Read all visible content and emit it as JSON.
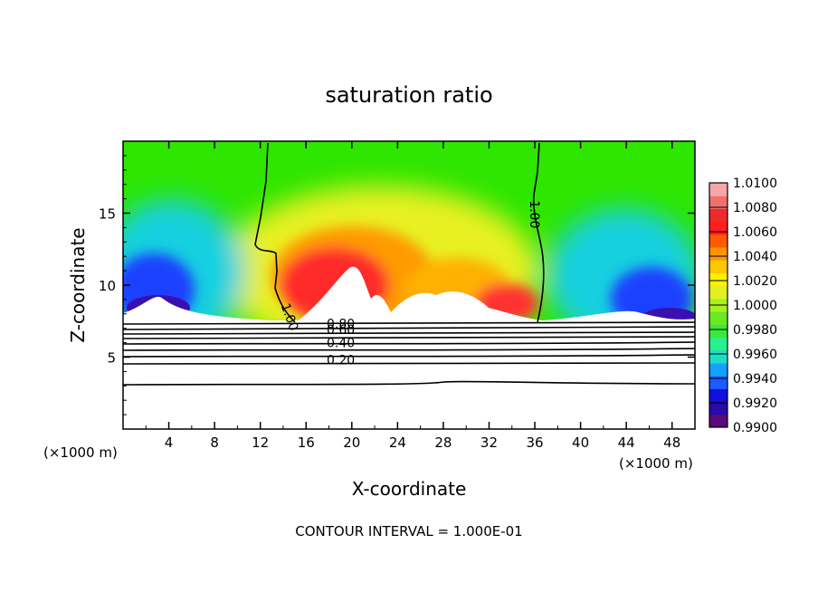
{
  "chart_data": {
    "type": "heatmap",
    "title": "saturation ratio",
    "xlabel": "X-coordinate",
    "ylabel": "Z-coordinate",
    "x_unit_left": "(×1000 m)",
    "x_unit_right": "(×1000 m)",
    "footer": "CONTOUR INTERVAL = 1.000E-01",
    "xlim": [
      0,
      50
    ],
    "ylim": [
      0,
      20
    ],
    "x_ticks": [
      4,
      8,
      12,
      16,
      20,
      24,
      28,
      32,
      36,
      40,
      44,
      48
    ],
    "x_tick_labels": [
      "4",
      "8",
      "12",
      "16",
      "20",
      "24",
      "28",
      "32",
      "36",
      "40",
      "44",
      "48"
    ],
    "y_ticks": [
      5,
      10,
      15
    ],
    "y_tick_labels": [
      "5",
      "10",
      "15"
    ],
    "colorbar": {
      "min": 0.99,
      "max": 1.01,
      "labels": [
        "1.0100",
        "1.0080",
        "1.0060",
        "1.0040",
        "1.0020",
        "1.0000",
        "0.9980",
        "0.9960",
        "0.9940",
        "0.9920",
        "0.9900"
      ],
      "colors": [
        "#5a0a7a",
        "#2a0aa8",
        "#1010e0",
        "#1a5cff",
        "#14a0ff",
        "#18e0c8",
        "#28f08c",
        "#3ce83c",
        "#68ea22",
        "#a8f020",
        "#e0f020",
        "#fff000",
        "#ffc800",
        "#ff9600",
        "#ff5a00",
        "#ff1e1e",
        "#f02a2a",
        "#f07070",
        "#f4a8a8"
      ]
    },
    "contour_labels": [
      {
        "text": "1.00",
        "x": 13.8,
        "z": 8.6,
        "rotate": 70
      },
      {
        "text": "1.00",
        "x": 35.6,
        "z": 15.9,
        "rotate": 90
      },
      {
        "text": "0.80",
        "x": 17.8,
        "z": 7.0,
        "rotate": 0
      },
      {
        "text": "0.60",
        "x": 17.8,
        "z": 6.6,
        "rotate": 0
      },
      {
        "text": "0.40",
        "x": 17.8,
        "z": 5.7,
        "rotate": 0
      },
      {
        "text": "0.20",
        "x": 17.8,
        "z": 4.5,
        "rotate": 0
      }
    ],
    "contour_levels_below": [
      0.2,
      0.4,
      0.6,
      0.8
    ],
    "cloud_base_z": 7.4
  }
}
